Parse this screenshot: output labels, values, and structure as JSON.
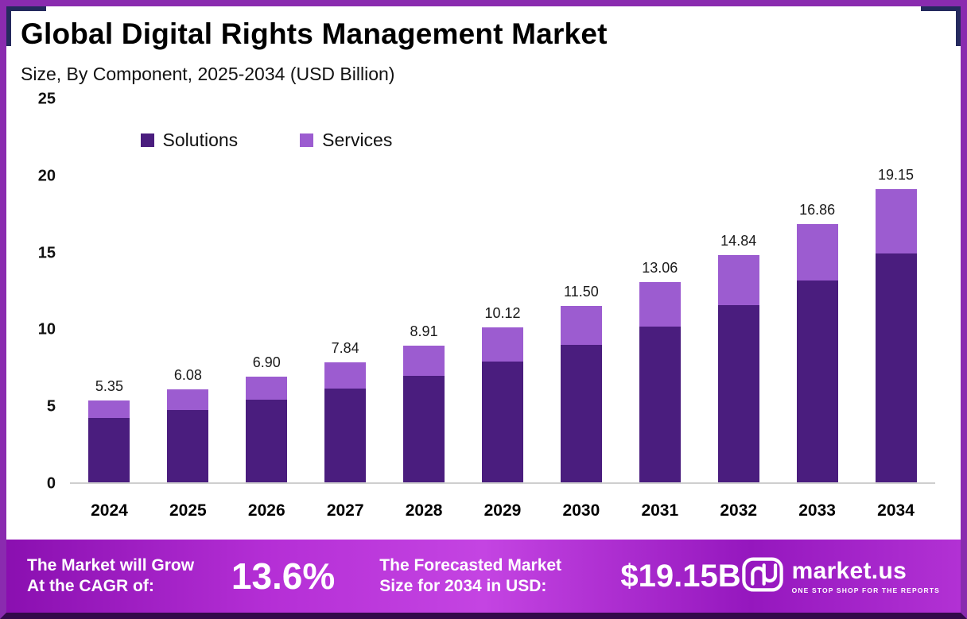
{
  "title": "Global Digital Rights Management Market",
  "subtitle": "Size, By Component, 2025-2034 (USD Billion)",
  "legend": [
    {
      "label": "Solutions",
      "color": "#4a1d7e"
    },
    {
      "label": "Services",
      "color": "#9c5cd0"
    }
  ],
  "chart_data": {
    "type": "bar",
    "stacked": true,
    "title": "Global Digital Rights Management Market Size, By Component, 2025-2034 (USD Billion)",
    "categories": [
      "2024",
      "2025",
      "2026",
      "2027",
      "2028",
      "2029",
      "2030",
      "2031",
      "2032",
      "2033",
      "2034"
    ],
    "series": [
      {
        "name": "Solutions",
        "color": "#4a1d7e",
        "values": [
          4.18,
          4.74,
          5.38,
          6.11,
          6.95,
          7.89,
          8.97,
          10.19,
          11.58,
          13.15,
          14.94
        ]
      },
      {
        "name": "Services",
        "color": "#9c5cd0",
        "values": [
          1.17,
          1.34,
          1.52,
          1.73,
          1.96,
          2.23,
          2.53,
          2.87,
          3.26,
          3.71,
          4.21
        ]
      }
    ],
    "totals": [
      5.35,
      6.08,
      6.9,
      7.84,
      8.91,
      10.12,
      11.5,
      13.06,
      14.84,
      16.86,
      19.15
    ],
    "total_labels": [
      "5.35",
      "6.08",
      "6.90",
      "7.84",
      "8.91",
      "10.12",
      "11.50",
      "13.06",
      "14.84",
      "16.86",
      "19.15"
    ],
    "xlabel": "",
    "ylabel": "",
    "ylim": [
      0,
      25
    ],
    "yticks": [
      0,
      5,
      10,
      15,
      20,
      25
    ],
    "grid": false,
    "legend_position": "top-left-inside"
  },
  "banner": {
    "cagr_label": "The Market will Grow At the CAGR of:",
    "cagr_value": "13.6%",
    "forecast_label": "The Forecasted Market Size for 2034 in USD:",
    "forecast_value": "$19.15B",
    "logo_icon": "market-us-icon",
    "logo_text": "market.us",
    "logo_tagline": "ONE STOP SHOP FOR THE REPORTS"
  },
  "colors": {
    "solutions": "#4a1d7e",
    "services": "#9c5cd0",
    "frame_border": "#8a2baf",
    "frame_corner": "#252a5e",
    "banner_gradient_start": "#8a0fb0",
    "banner_gradient_end": "#b231d4",
    "axis_line": "#cfcfcf",
    "text": "#000000",
    "banner_text": "#ffffff"
  }
}
